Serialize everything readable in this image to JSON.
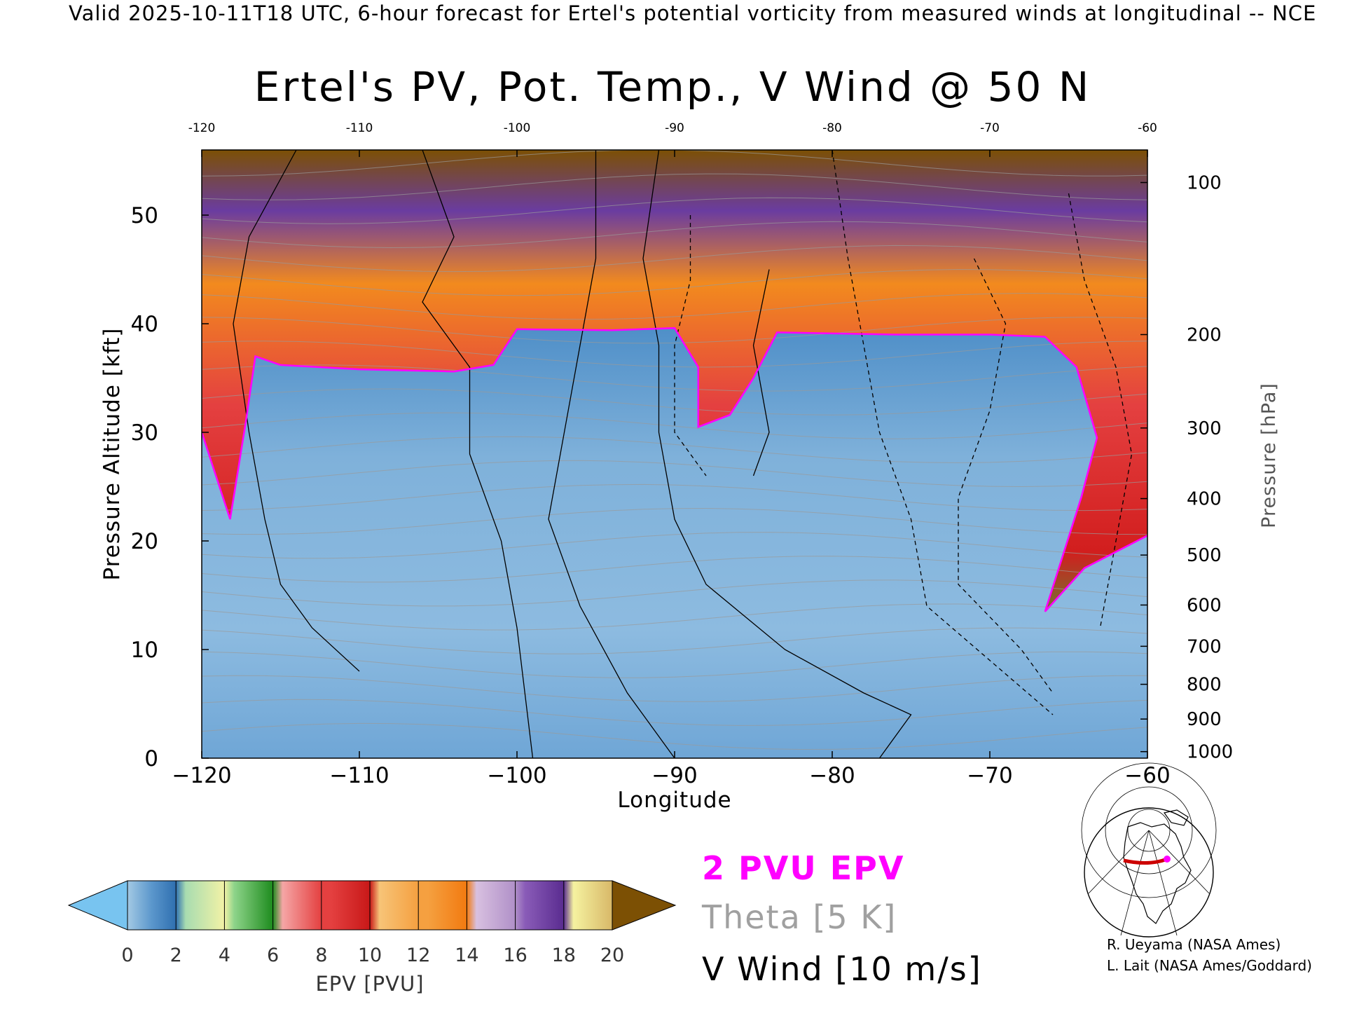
{
  "header": {
    "text": "Valid 2025-10-11T18 UTC, 6-hour forecast for Ertel's potential vorticity from measured winds at longitudinal -- NCE"
  },
  "chart_data": {
    "type": "heatmap",
    "title": "Ertel's PV, Pot. Temp., V Wind @ 50 N",
    "xlabel": "Longitude",
    "ylabel": "Pressure Altitude [kft]",
    "y2label": "Pressure [hPa]",
    "xlim": [
      -120,
      -60
    ],
    "ylim": [
      0,
      56
    ],
    "x_ticks": [
      "-120",
      "-110",
      "-100",
      "-90",
      "-80",
      "-70",
      "-60"
    ],
    "x_top_ticks": [
      "-120",
      "-110",
      "-100",
      "-90",
      "-80",
      "-70",
      "-60"
    ],
    "y_ticks": [
      "0",
      "10",
      "20",
      "30",
      "40",
      "50"
    ],
    "pressure_ticks": [
      {
        "label": "100",
        "kft": 53.0
      },
      {
        "label": "200",
        "kft": 39.0
      },
      {
        "label": "300",
        "kft": 30.4
      },
      {
        "label": "400",
        "kft": 23.9
      },
      {
        "label": "500",
        "kft": 18.7
      },
      {
        "label": "600",
        "kft": 14.1
      },
      {
        "label": "700",
        "kft": 10.3
      },
      {
        "label": "800",
        "kft": 6.8
      },
      {
        "label": "900",
        "kft": 3.6
      },
      {
        "label": "1000",
        "kft": 0.6
      }
    ],
    "tropopause_kft": [
      {
        "lon": -120,
        "kft": 30
      },
      {
        "lon": -118.2,
        "kft": 22
      },
      {
        "lon": -117.2,
        "kft": 31
      },
      {
        "lon": -116.6,
        "kft": 37
      },
      {
        "lon": -115,
        "kft": 36.2
      },
      {
        "lon": -110,
        "kft": 35.8
      },
      {
        "lon": -104,
        "kft": 35.6
      },
      {
        "lon": -101.5,
        "kft": 36.2
      },
      {
        "lon": -100,
        "kft": 39.5
      },
      {
        "lon": -94,
        "kft": 39.4
      },
      {
        "lon": -90,
        "kft": 39.6
      },
      {
        "lon": -88.5,
        "kft": 36
      },
      {
        "lon": -88.5,
        "kft": 30.5
      },
      {
        "lon": -86.5,
        "kft": 31.6
      },
      {
        "lon": -85,
        "kft": 35
      },
      {
        "lon": -83.5,
        "kft": 39.2
      },
      {
        "lon": -76,
        "kft": 39.0
      },
      {
        "lon": -70,
        "kft": 39.0
      },
      {
        "lon": -66.5,
        "kft": 38.8
      },
      {
        "lon": -64.5,
        "kft": 36
      },
      {
        "lon": -63.2,
        "kft": 29.5
      },
      {
        "lon": -64.2,
        "kft": 24
      },
      {
        "lon": -66.5,
        "kft": 13.5
      },
      {
        "lon": -64,
        "kft": 17.5
      },
      {
        "lon": -60,
        "kft": 20.5
      }
    ],
    "colorbar": {
      "label": "EPV [PVU]",
      "ticks": [
        "0",
        "2",
        "4",
        "6",
        "8",
        "10",
        "12",
        "14",
        "16",
        "18",
        "20"
      ],
      "colors": [
        "#78c4f0",
        "#a3c9e4",
        "#3e7fbd",
        "#8ed48a",
        "#f2f2a6",
        "#3aa63a",
        "#1e8c1e",
        "#f5a6a6",
        "#e44040",
        "#d21e1e",
        "#f7c478",
        "#f28a1e",
        "#c8a8d8",
        "#6a3ca0",
        "#f5f2a0",
        "#7c5004"
      ]
    }
  },
  "legend": {
    "epv": "2 PVU EPV",
    "theta": "Theta [5 K]",
    "vwind": "V Wind [10 m/s]"
  },
  "credits": {
    "line1": "R. Ueyama (NASA Ames)",
    "line2": "L. Lait (NASA Ames/Goddard)"
  }
}
